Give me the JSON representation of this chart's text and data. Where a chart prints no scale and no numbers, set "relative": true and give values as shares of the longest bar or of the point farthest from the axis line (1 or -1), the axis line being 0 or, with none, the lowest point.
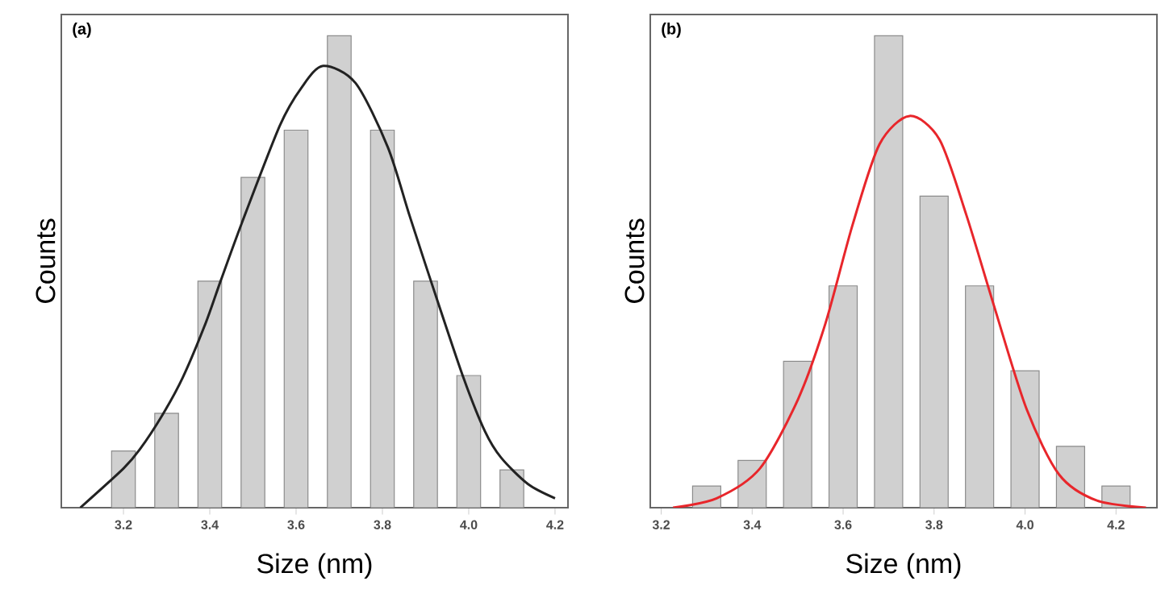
{
  "chart_data": [
    {
      "type": "bar",
      "title": "(a)",
      "xlabel": "Size (nm)",
      "ylabel": "Counts",
      "relative": true,
      "xlim": [
        3.056,
        4.23
      ],
      "xticks": [
        3.2,
        3.4,
        3.6,
        3.8,
        {
          "value": 4.0,
          "label": "4.0"
        },
        4.2
      ],
      "series": [
        {
          "color": "#d0d0d0",
          "x": [
            3.2,
            3.3,
            3.4,
            3.5,
            3.6,
            3.7,
            3.8,
            3.9,
            4.0,
            4.1
          ],
          "values": [
            0.12,
            0.2,
            0.48,
            0.7,
            0.8,
            1,
            0.8,
            0.48,
            0.28,
            0.08
          ]
        },
        {
          "type": "line",
          "color": "#222222",
          "x": [
            3.1,
            3.2,
            3.2375,
            3.29,
            3.3375,
            3.39,
            3.425,
            3.475,
            3.5625,
            3.6125,
            3.6625,
            3.7375,
            3.8125,
            3.8625,
            3.9125,
            3.9875,
            4.0375,
            4.075,
            4.1375,
            4.2
          ],
          "values": [
            0,
            0.083,
            0.123,
            0.196,
            0.276,
            0.39,
            0.48,
            0.605,
            0.81,
            0.89,
            0.936,
            0.9,
            0.764,
            0.62,
            0.48,
            0.276,
            0.162,
            0.106,
            0.05,
            0.02
          ]
        }
      ]
    },
    {
      "type": "bar",
      "title": "(b)",
      "xlabel": "Size (nm)",
      "ylabel": "Counts",
      "relative": true,
      "xlim": [
        3.176,
        4.29
      ],
      "xticks": [
        3.2,
        3.4,
        3.6,
        3.8,
        {
          "value": 4.0,
          "label": "4.0"
        },
        4.2
      ],
      "series": [
        {
          "color": "#d0d0d0",
          "x": [
            3.3,
            3.4,
            3.5,
            3.6,
            3.7,
            3.8,
            3.9,
            4.0,
            4.1,
            4.2
          ],
          "values": [
            0.046,
            0.1,
            0.31,
            0.47,
            1,
            0.66,
            0.47,
            0.29,
            0.13,
            0.046
          ]
        },
        {
          "type": "line",
          "color": "#e8262b",
          "x": [
            3.226,
            3.322,
            3.417,
            3.501,
            3.561,
            3.621,
            3.68,
            3.746,
            3.812,
            3.871,
            3.931,
            4.003,
            4.075,
            4.158,
            4.266
          ],
          "values": [
            0,
            0.02,
            0.083,
            0.23,
            0.39,
            0.6,
            0.77,
            0.83,
            0.78,
            0.62,
            0.43,
            0.21,
            0.07,
            0.015,
            0
          ]
        }
      ]
    }
  ]
}
